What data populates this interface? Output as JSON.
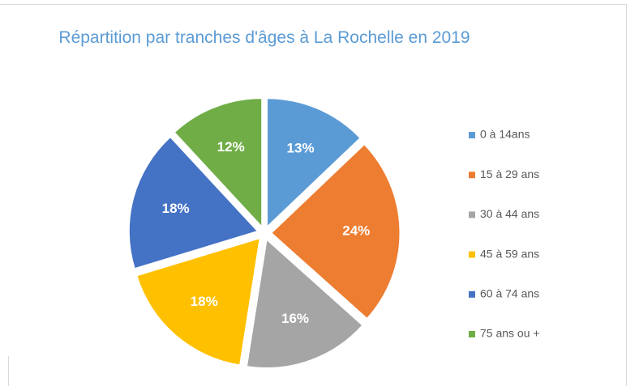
{
  "chart_data": {
    "type": "pie",
    "title": "Répartition par tranches d'âges à La Rochelle en 2019",
    "categories": [
      "0 à 14ans",
      "15 à 29 ans",
      "30 à 44 ans",
      "45 à 59 ans",
      "60 à 74 ans",
      "75 ans ou +"
    ],
    "values": [
      13,
      24,
      16,
      18,
      18,
      12
    ],
    "value_labels": [
      "13%",
      "24%",
      "16%",
      "18%",
      "18%",
      "12%"
    ],
    "colors": [
      "#5b9bd5",
      "#ed7d31",
      "#a5a5a5",
      "#ffc000",
      "#4472c4",
      "#70ad47"
    ],
    "legend": "right"
  }
}
